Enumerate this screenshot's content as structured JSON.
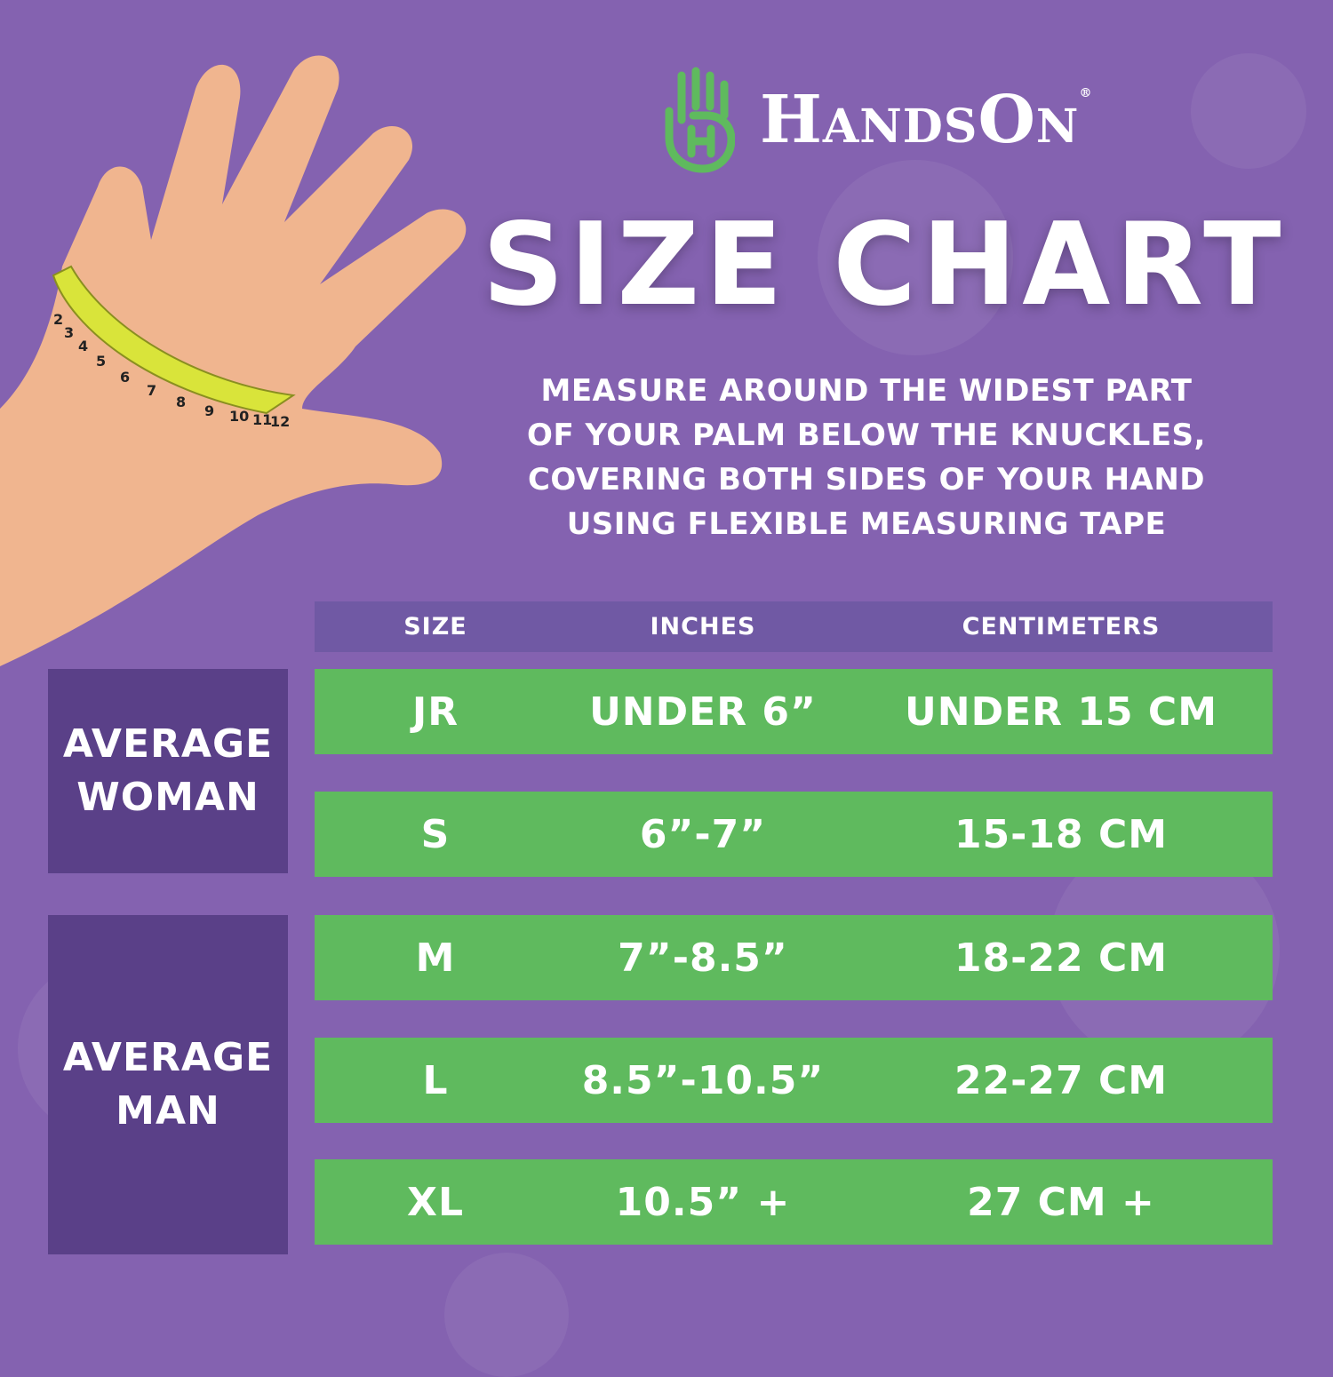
{
  "brand": {
    "name": "HandsOn",
    "registered": "®",
    "logo_color": "#5fba5e"
  },
  "title": "SIZE CHART",
  "instructions": [
    "MEASURE AROUND THE WIDEST PART",
    "OF YOUR PALM BELOW THE KNUCKLES,",
    "COVERING BOTH SIDES OF YOUR HAND",
    "USING FLEXIBLE MEASURING TAPE"
  ],
  "table": {
    "headers": {
      "size": "SIZE",
      "inches": "INCHES",
      "centimeters": "CENTIMETERS"
    },
    "groups": [
      {
        "label_1": "AVERAGE",
        "label_2": "WOMAN"
      },
      {
        "label_1": "AVERAGE",
        "label_2": "MAN"
      }
    ],
    "rows": [
      {
        "size": "JR",
        "inches": "UNDER 6”",
        "cm": "UNDER 15 CM"
      },
      {
        "size": "S",
        "inches": "6”-7”",
        "cm": "15-18 CM"
      },
      {
        "size": "M",
        "inches": "7”-8.5”",
        "cm": "18-22 CM"
      },
      {
        "size": "L",
        "inches": "8.5”-10.5”",
        "cm": "22-27 CM"
      },
      {
        "size": "XL",
        "inches": "10.5” +",
        "cm": "27 CM +"
      }
    ]
  },
  "tape_numbers": [
    "2",
    "3",
    "4",
    "5",
    "6",
    "7",
    "8",
    "9",
    "10",
    "11",
    "12"
  ],
  "colors": {
    "background": "#8462b0",
    "group_box": "#5a4088",
    "header_bar": "#7059a4",
    "row": "#5fba5e",
    "tape": "#d9e43a",
    "skin": "#f0b58f"
  }
}
